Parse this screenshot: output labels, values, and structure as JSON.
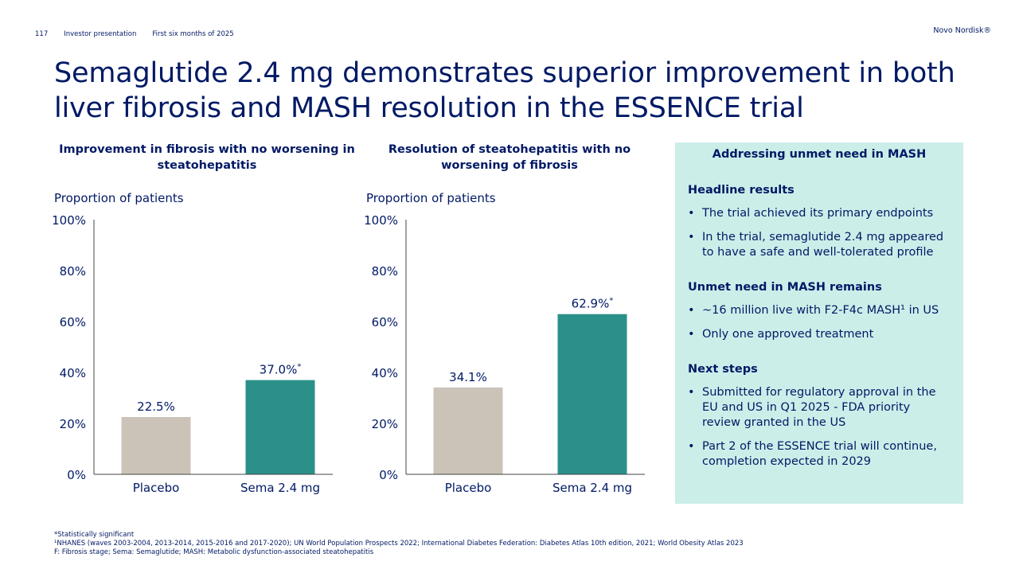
{
  "header": {
    "page_number": "117",
    "section": "Investor presentation",
    "period": "First six months of 2025",
    "brand": "Novo Nordisk®"
  },
  "title": "Semaglutide 2.4 mg demonstrates superior improvement in both liver fibrosis and MASH resolution in the ESSENCE trial",
  "colors": {
    "navy": "#001965",
    "placebo": "#cbc3b8",
    "sema": "#2a9088",
    "panel_bg": "#cceee9"
  },
  "chart_data": [
    {
      "type": "bar",
      "title": "Improvement in fibrosis with no worsening in steatohepatitis",
      "ylabel": "Proportion of patients",
      "categories": [
        "Placebo",
        "Sema 2.4 mg"
      ],
      "values": [
        22.5,
        37.0
      ],
      "data_labels": [
        "22.5%",
        "37.0%*"
      ],
      "ylim": [
        0,
        100
      ],
      "yticks": [
        "0%",
        "20%",
        "40%",
        "60%",
        "80%",
        "100%"
      ],
      "grid": false
    },
    {
      "type": "bar",
      "title": "Resolution of steatohepatitis with no worsening of fibrosis",
      "ylabel": "Proportion of patients",
      "categories": [
        "Placebo",
        "Sema 2.4 mg"
      ],
      "values": [
        34.1,
        62.9
      ],
      "data_labels": [
        "34.1%",
        "62.9%*"
      ],
      "ylim": [
        0,
        100
      ],
      "yticks": [
        "0%",
        "20%",
        "40%",
        "60%",
        "80%",
        "100%"
      ],
      "grid": false
    }
  ],
  "panel": {
    "title": "Addressing unmet need in MASH",
    "sections": [
      {
        "heading": "Headline results",
        "bullets": [
          "The trial achieved its primary endpoints",
          "In the trial, semaglutide 2.4 mg appeared to have a safe and well-tolerated profile"
        ]
      },
      {
        "heading": "Unmet need in MASH remains",
        "bullets": [
          "~16 million live with F2-F4c MASH¹ in US",
          "Only one approved treatment"
        ]
      },
      {
        "heading": "Next steps",
        "bullets": [
          "Submitted for regulatory approval in the EU and US in Q1 2025 - FDA priority review granted in the US",
          "Part 2 of the ESSENCE trial will continue, completion expected in 2029"
        ]
      }
    ]
  },
  "footnotes": [
    "*Statistically significant",
    "¹NHANES (waves 2003-2004, 2013-2014, 2015-2016 and 2017-2020); UN World Population Prospects 2022; International Diabetes Federation: Diabetes Atlas 10th edition, 2021; World Obesity Atlas 2023",
    "F: Fibrosis stage; Sema: Semaglutide; MASH: Metabolic dysfunction-associated steatohepatitis"
  ]
}
